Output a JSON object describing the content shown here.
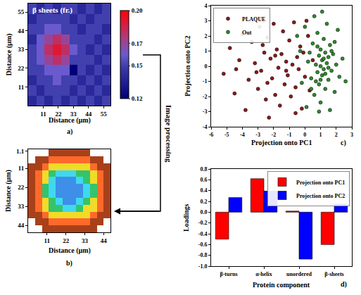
{
  "chart_data": [
    {
      "type": "heatmap",
      "label": "a)",
      "title": "β sheets (fr.)",
      "x_label": "Distance (µm)",
      "y_label": "Distance (µm)",
      "x": [
        3,
        9,
        15,
        21,
        27,
        33,
        39,
        45,
        51,
        57
      ],
      "y": [
        3,
        9,
        15,
        21,
        27,
        33,
        39,
        45,
        51,
        57
      ],
      "z": [
        [
          0.14,
          0.15,
          0.14,
          0.15,
          0.14,
          0.15,
          0.14,
          0.15,
          0.14,
          0.15
        ],
        [
          0.15,
          0.14,
          0.15,
          0.15,
          0.15,
          0.14,
          0.15,
          0.14,
          0.15,
          0.14
        ],
        [
          0.14,
          0.15,
          0.15,
          0.16,
          0.15,
          0.15,
          0.14,
          0.15,
          0.14,
          0.15
        ],
        [
          0.15,
          0.15,
          0.16,
          0.16,
          0.16,
          0.12,
          0.15,
          0.14,
          0.15,
          0.14
        ],
        [
          0.15,
          0.16,
          0.17,
          0.18,
          0.17,
          0.15,
          0.15,
          0.15,
          0.14,
          0.15
        ],
        [
          0.15,
          0.16,
          0.18,
          0.19,
          0.18,
          0.16,
          0.15,
          0.14,
          0.15,
          0.14
        ],
        [
          0.14,
          0.16,
          0.17,
          0.18,
          0.17,
          0.15,
          0.15,
          0.15,
          0.14,
          0.15
        ],
        [
          0.15,
          0.15,
          0.16,
          0.16,
          0.15,
          0.15,
          0.14,
          0.15,
          0.15,
          0.14
        ],
        [
          0.14,
          0.15,
          0.15,
          0.15,
          0.15,
          0.14,
          0.15,
          0.14,
          0.15,
          0.15
        ],
        [
          0.15,
          0.14,
          0.15,
          0.14,
          0.15,
          0.15,
          0.14,
          0.15,
          0.14,
          0.15
        ]
      ],
      "xlim": [
        0,
        60
      ],
      "ylim": [
        0,
        60
      ],
      "xticks": [
        11,
        22,
        33,
        44,
        55
      ],
      "yticks": [
        11,
        22,
        33,
        44,
        55
      ],
      "colorbar_range": [
        0.12,
        0.2
      ],
      "colorbar_ticks": [
        0.12,
        0.15,
        0.17,
        {
          "value": 0.2,
          "label": "0.20"
        }
      ]
    },
    {
      "type": "heatmap",
      "label": "b)",
      "x_label": "Distance (µm)",
      "y_label": "Distance (µm)",
      "x": [
        2,
        6,
        10,
        14,
        18,
        22,
        26,
        30,
        34,
        38,
        42,
        46
      ],
      "y": [
        2,
        6,
        10,
        14,
        18,
        22,
        26,
        30,
        34,
        38,
        42,
        46
      ],
      "z": [
        [
          null,
          null,
          null,
          6,
          6,
          6,
          6,
          6,
          6,
          null,
          null,
          null
        ],
        [
          null,
          6,
          6,
          5,
          5,
          5,
          5,
          5,
          5,
          6,
          6,
          null
        ],
        [
          6,
          6,
          5,
          4,
          4,
          4,
          4,
          4,
          4,
          5,
          6,
          6
        ],
        [
          6,
          5,
          4,
          3,
          2,
          2,
          2,
          3,
          3,
          4,
          5,
          6
        ],
        [
          6,
          5,
          4,
          2,
          1,
          1,
          1,
          2,
          3,
          4,
          5,
          6
        ],
        [
          6,
          5,
          3,
          2,
          1,
          1,
          1,
          1,
          2,
          3,
          5,
          6
        ],
        [
          6,
          5,
          3,
          2,
          1,
          1,
          1,
          1,
          2,
          3,
          5,
          6
        ],
        [
          6,
          5,
          4,
          3,
          2,
          1,
          1,
          2,
          3,
          4,
          5,
          6
        ],
        [
          6,
          5,
          4,
          3,
          3,
          2,
          2,
          3,
          4,
          4,
          5,
          6
        ],
        [
          6,
          6,
          5,
          4,
          4,
          4,
          4,
          4,
          4,
          5,
          6,
          6
        ],
        [
          null,
          6,
          6,
          5,
          5,
          5,
          5,
          5,
          5,
          6,
          6,
          null
        ],
        [
          null,
          null,
          6,
          6,
          6,
          6,
          6,
          6,
          6,
          6,
          null,
          null
        ]
      ],
      "levels": [
        1,
        2,
        3,
        4,
        5,
        6
      ],
      "colors": [
        "#3d8fe8",
        "#3fd8f0",
        "#35c46a",
        "#f0dc28",
        "#ff6a2a",
        "#a8401a"
      ],
      "xlim": [
        0,
        48
      ],
      "ylim": [
        48,
        0
      ],
      "xticks": [
        11,
        22,
        33,
        44
      ],
      "yticks": [
        1.1,
        11,
        22,
        33,
        44
      ]
    },
    {
      "type": "scatter",
      "label": "c)",
      "x_label": "Projection onto PC1",
      "y_label": "Projection onto PC2",
      "legend": "upper left",
      "series": [
        {
          "name": "PLAQUE",
          "color": "#8b1a1a",
          "marker": "circle",
          "x": [
            -5.2,
            -4.8,
            -4.5,
            -4.2,
            -4.0,
            -3.8,
            -3.6,
            -3.4,
            -3.2,
            -3.0,
            -2.9,
            -2.8,
            -2.6,
            -2.5,
            -2.4,
            -2.3,
            -2.2,
            -2.1,
            -2.0,
            -1.9,
            -1.8,
            -1.7,
            -1.6,
            -1.5,
            -1.4,
            -1.3,
            -1.2,
            -1.1,
            -1.0,
            -0.9,
            -0.8,
            -0.7,
            -0.6,
            -0.5,
            -0.4,
            -0.3,
            -0.2,
            -0.1,
            0.0,
            0.2,
            0.3,
            0.5,
            -3.1,
            -2.7,
            -1.9,
            -1.2,
            -2.4,
            -0.6,
            -4.4,
            0.1
          ],
          "y": [
            -0.5,
            1.2,
            -1.8,
            0.4,
            2.1,
            -2.9,
            -0.9,
            1.6,
            0.2,
            -1.5,
            2.6,
            -0.3,
            0.9,
            -2.2,
            1.9,
            -3.4,
            0.5,
            -0.8,
            2.8,
            -1.9,
            1.1,
            -0.1,
            -2.6,
            0.8,
            2.3,
            -1.2,
            0.3,
            -0.6,
            1.7,
            -2.0,
            0.1,
            2.9,
            -1.4,
            0.6,
            -0.2,
            1.3,
            -2.8,
            0.9,
            -0.7,
            2.0,
            -1.6,
            0.4,
            -0.4,
            1.4,
            0.7,
            -0.3,
            -1.1,
            -3.1,
            -0.2,
            3.0
          ]
        },
        {
          "name": "Out",
          "color": "#2e8b2e",
          "marker": "circle",
          "x": [
            0.2,
            0.4,
            0.5,
            0.6,
            0.7,
            0.8,
            0.8,
            0.9,
            0.9,
            1.0,
            1.0,
            1.0,
            1.1,
            1.1,
            1.2,
            1.2,
            1.3,
            1.3,
            1.4,
            1.4,
            1.5,
            1.5,
            1.6,
            1.6,
            1.7,
            1.8,
            1.9,
            2.0,
            2.1,
            2.2,
            2.4,
            2.6,
            -0.3,
            -0.2,
            0.0,
            0.1,
            0.6,
            1.1,
            0.9,
            1.7,
            0.3,
            0.7,
            1.2,
            1.5,
            0.8,
            1.0,
            1.9,
            0.4,
            1.3,
            -0.5
          ],
          "y": [
            0.3,
            -0.8,
            1.5,
            -1.9,
            0.1,
            2.2,
            -0.4,
            0.7,
            -1.2,
            0.0,
            1.1,
            -2.4,
            0.4,
            -0.6,
            1.8,
            -0.2,
            0.9,
            -1.5,
            0.2,
            2.8,
            -0.9,
            0.6,
            -2.9,
            1.4,
            -0.3,
            0.8,
            -1.7,
            0.1,
            2.4,
            -0.7,
            0.5,
            -1.0,
            1.0,
            -1.1,
            2.6,
            -2.7,
            3.3,
            3.6,
            -3.0,
            1.0,
            0.9,
            -1.0,
            0.5,
            -0.1,
            1.3,
            -0.9,
            1.6,
            -1.5,
            -0.5,
            2.0
          ]
        }
      ],
      "xlim": [
        -6,
        3
      ],
      "ylim": [
        -4,
        4
      ],
      "xticks": [
        -6,
        -5,
        -4,
        -3,
        -2,
        -1,
        0,
        1,
        2,
        3
      ],
      "yticks": [
        -4,
        -3,
        -2,
        -1,
        0,
        1,
        2,
        3,
        4
      ]
    },
    {
      "type": "bar",
      "label": "d)",
      "x_label": "Protein component",
      "y_label": "Loadings",
      "legend": "upper right",
      "categories": [
        "β-turns",
        "α-helix",
        "unordered",
        "β-sheets"
      ],
      "series": [
        {
          "name": "Projection onto PC1",
          "color": "#ff0000",
          "values": [
            -0.5,
            0.62,
            0.02,
            -0.6
          ]
        },
        {
          "name": "Projection onto PC2",
          "color": "#0000ff",
          "values": [
            0.27,
            0.39,
            -0.87,
            0.15
          ]
        }
      ],
      "ylim": [
        -1,
        0.8
      ],
      "yticks": [
        {
          "value": -1,
          "label": "-1.0"
        },
        -0.8,
        -0.6,
        -0.4,
        -0.2,
        {
          "value": 0,
          "label": "0.0"
        },
        0.2,
        0.4,
        0.6,
        0.8
      ]
    }
  ],
  "annotation": "Image processing"
}
